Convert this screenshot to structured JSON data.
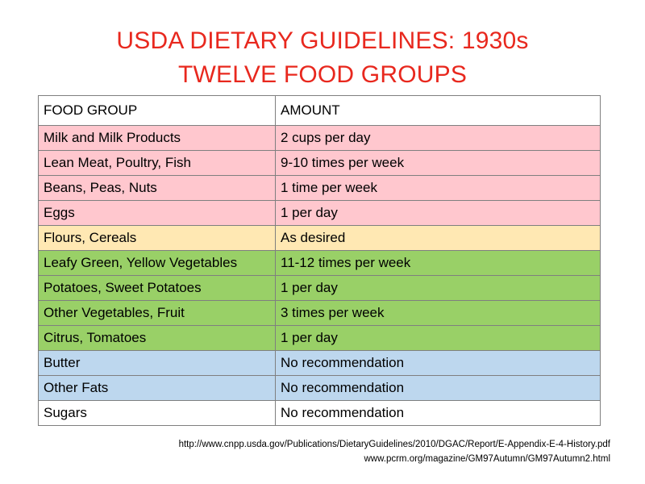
{
  "title": {
    "line1": "USDA DIETARY GUIDELINES: 1930s",
    "line2": "TWELVE FOOD GROUPS"
  },
  "colors": {
    "title": "#e8281e",
    "header_bg": "#ffffff",
    "pink": "#ffc7ce",
    "yellow": "#ffe8b3",
    "green": "#99d067",
    "blue": "#bdd7ee",
    "border": "#7f7f7f"
  },
  "table": {
    "headers": [
      "FOOD GROUP",
      "AMOUNT"
    ],
    "rows": [
      {
        "group": "Milk and Milk Products",
        "amount": "2 cups per day",
        "color": "pink"
      },
      {
        "group": "Lean Meat, Poultry, Fish",
        "amount": "9-10 times per week",
        "color": "pink"
      },
      {
        "group": "Beans, Peas, Nuts",
        "amount": "1 time per week",
        "color": "pink"
      },
      {
        "group": "Eggs",
        "amount": "1  per day",
        "color": "pink"
      },
      {
        "group": "Flours, Cereals",
        "amount": "As desired",
        "color": "yellow"
      },
      {
        "group": "Leafy Green, Yellow Vegetables",
        "amount": "11-12 times per week",
        "color": "green"
      },
      {
        "group": "Potatoes, Sweet Potatoes",
        "amount": "1 per day",
        "color": "green"
      },
      {
        "group": "Other Vegetables, Fruit",
        "amount": "3 times per week",
        "color": "green"
      },
      {
        "group": "Citrus, Tomatoes",
        "amount": "1 per day",
        "color": "green"
      },
      {
        "group": "Butter",
        "amount": "No recommendation",
        "color": "blue"
      },
      {
        "group": "Other Fats",
        "amount": "No recommendation",
        "color": "blue"
      },
      {
        "group": "Sugars",
        "amount": "No recommendation",
        "color": "white"
      }
    ]
  },
  "sources": {
    "line1": "http://www.cnpp.usda.gov/Publications/DietaryGuidelines/2010/DGAC/Report/E-Appendix-E-4-History.pdf",
    "line2": "www.pcrm.org/magazine/GM97Autumn/GM97Autumn2.html"
  }
}
